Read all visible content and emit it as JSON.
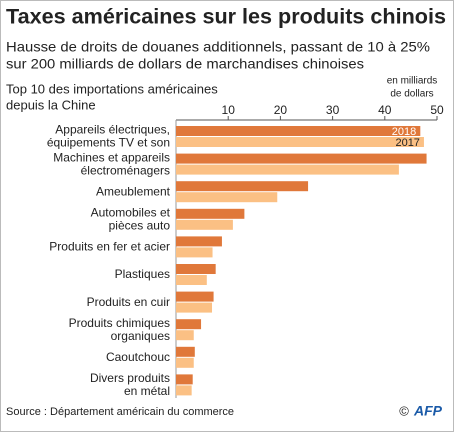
{
  "chart_data": {
    "type": "bar",
    "orientation": "horizontal",
    "title": "Taxes américaines sur les produits chinois",
    "subtitle": [
      "Hausse de droits de douanes additionnels, passant de 10 à 25%",
      "sur 200 milliards de dollars de marchandises chinoises"
    ],
    "chart_title": [
      "Top 10 des importations américaines",
      "depuis la Chine"
    ],
    "unit_label": [
      "en milliards",
      "de dollars"
    ],
    "categories": [
      [
        "Appareils électriques,",
        "équipements TV et son"
      ],
      [
        "Machines et appareils",
        "électroménagers"
      ],
      [
        "Ameublement"
      ],
      [
        "Automobiles et",
        "pièces auto"
      ],
      [
        "Produits en fer et acier"
      ],
      [
        "Plastiques"
      ],
      [
        "Produits en cuir"
      ],
      [
        "Produits chimiques",
        "organiques"
      ],
      [
        "Caoutchouc"
      ],
      [
        "Divers produits",
        "en métal"
      ]
    ],
    "series": [
      {
        "name": "2018",
        "color": "#e0783a",
        "values": [
          46.8,
          48,
          25.3,
          13.1,
          8.8,
          7.6,
          7.2,
          4.8,
          3.6,
          3.2
        ]
      },
      {
        "name": "2017",
        "color": "#fbc084",
        "values": [
          47.5,
          42.7,
          19.4,
          10.9,
          7,
          5.9,
          6.9,
          3.4,
          3.4,
          3
        ]
      }
    ],
    "xlim": [
      0,
      50
    ],
    "xticks": [
      10,
      20,
      30,
      40,
      50
    ],
    "source": "Source : Département américain du commerce",
    "credit": "©",
    "logo": "AFP"
  }
}
